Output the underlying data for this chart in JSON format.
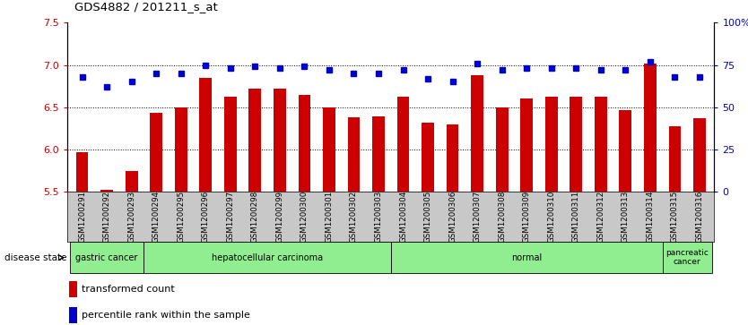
{
  "title": "GDS4882 / 201211_s_at",
  "samples": [
    "GSM1200291",
    "GSM1200292",
    "GSM1200293",
    "GSM1200294",
    "GSM1200295",
    "GSM1200296",
    "GSM1200297",
    "GSM1200298",
    "GSM1200299",
    "GSM1200300",
    "GSM1200301",
    "GSM1200302",
    "GSM1200303",
    "GSM1200304",
    "GSM1200305",
    "GSM1200306",
    "GSM1200307",
    "GSM1200308",
    "GSM1200309",
    "GSM1200310",
    "GSM1200311",
    "GSM1200312",
    "GSM1200313",
    "GSM1200314",
    "GSM1200315",
    "GSM1200316"
  ],
  "transformed_count": [
    5.97,
    5.52,
    5.75,
    6.43,
    6.5,
    6.85,
    6.62,
    6.72,
    6.72,
    6.65,
    6.5,
    6.38,
    6.39,
    6.63,
    6.32,
    6.3,
    6.88,
    6.5,
    6.6,
    6.62,
    6.62,
    6.62,
    6.47,
    7.02,
    6.28,
    6.37
  ],
  "percentile_rank": [
    68,
    62,
    65,
    70,
    70,
    75,
    73,
    74,
    73,
    74,
    72,
    70,
    70,
    72,
    67,
    65,
    76,
    72,
    73,
    73,
    73,
    72,
    72,
    77,
    68,
    68
  ],
  "groups": [
    {
      "label": "gastric cancer",
      "start": 0,
      "end": 3
    },
    {
      "label": "hepatocellular carcinoma",
      "start": 3,
      "end": 13
    },
    {
      "label": "normal",
      "start": 13,
      "end": 24
    },
    {
      "label": "pancreatic\ncancer",
      "start": 24,
      "end": 26
    }
  ],
  "ylim_left": [
    5.5,
    7.5
  ],
  "ylim_right": [
    0,
    100
  ],
  "yticks_left": [
    5.5,
    6.0,
    6.5,
    7.0,
    7.5
  ],
  "yticks_right": [
    0,
    25,
    50,
    75,
    100
  ],
  "ytick_labels_right": [
    "0",
    "25",
    "50",
    "75",
    "100%"
  ],
  "bar_color": "#CC0000",
  "square_color": "#0000CC",
  "green_color": "#90EE90",
  "gray_color": "#C8C8C8",
  "bg_color": "#ffffff",
  "bar_width": 0.5,
  "disease_state_label": "disease state",
  "legend_red_label": "transformed count",
  "legend_blue_label": "percentile rank within the sample",
  "grid_yticks": [
    6.0,
    6.5,
    7.0
  ]
}
